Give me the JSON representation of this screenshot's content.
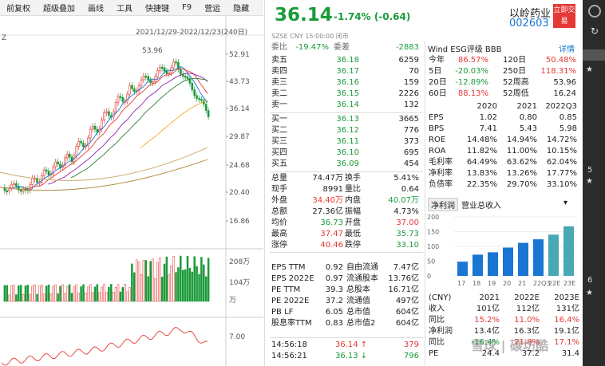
{
  "toolbar": {
    "items": [
      "前复权",
      "超级叠加",
      "画线",
      "工具",
      "快捷键",
      "F9",
      "营运",
      "隐藏"
    ]
  },
  "chart": {
    "range_label": "2021/12/29-2022/12/23(240日)",
    "left_label": "Z",
    "high_label": "53.96",
    "price_ticks": [
      "52.91",
      "43.73",
      "36.14",
      "29.87",
      "24.68",
      "20.40",
      "16.86"
    ],
    "volume_ticks": [
      "208万",
      "104万",
      "万"
    ],
    "indicator_ticks": [
      "7.00"
    ]
  },
  "header": {
    "price": "36.14",
    "change_pct": "-1.74%",
    "change_abs": "(-0.64)",
    "name": "以岭药业",
    "code": "002603",
    "trade_button": "立即交易",
    "market": "SZSE",
    "currency": "CNY",
    "time": "15:00:00",
    "status": "闭市"
  },
  "orderbook": {
    "weibi_label": "委比",
    "weibi_value": "-19.47%",
    "weicha_label": "委差",
    "weicha_value": "-2883",
    "asks": [
      {
        "label": "卖五",
        "price": "36.18",
        "vol": "6259"
      },
      {
        "label": "卖四",
        "price": "36.17",
        "vol": "70"
      },
      {
        "label": "卖三",
        "price": "36.16",
        "vol": "159"
      },
      {
        "label": "卖二",
        "price": "36.15",
        "vol": "2226"
      },
      {
        "label": "卖一",
        "price": "36.14",
        "vol": "132"
      }
    ],
    "bids": [
      {
        "label": "买一",
        "price": "36.13",
        "vol": "3665"
      },
      {
        "label": "买二",
        "price": "36.12",
        "vol": "776"
      },
      {
        "label": "买三",
        "price": "36.11",
        "vol": "373"
      },
      {
        "label": "买四",
        "price": "36.10",
        "vol": "695"
      },
      {
        "label": "买五",
        "price": "36.09",
        "vol": "454"
      }
    ]
  },
  "stats": [
    {
      "l1": "总量",
      "v1": "74.47万",
      "c1": "",
      "l2": "换手",
      "v2": "5.41%",
      "c2": ""
    },
    {
      "l1": "现手",
      "v1": "8991",
      "c1": "",
      "l2": "量比",
      "v2": "0.64",
      "c2": ""
    },
    {
      "l1": "外盘",
      "v1": "34.40万",
      "c1": "red",
      "l2": "内盘",
      "v2": "40.07万",
      "c2": "green"
    },
    {
      "l1": "总额",
      "v1": "27.36亿",
      "c1": "",
      "l2": "振幅",
      "v2": "4.73%",
      "c2": ""
    },
    {
      "l1": "均价",
      "v1": "36.73",
      "c1": "green",
      "l2": "开盘",
      "v2": "37.00",
      "c2": "red"
    },
    {
      "l1": "最高",
      "v1": "37.47",
      "c1": "red",
      "l2": "最低",
      "v2": "35.73",
      "c2": "green"
    },
    {
      "l1": "涨停",
      "v1": "40.46",
      "c1": "red",
      "l2": "跌停",
      "v2": "33.10",
      "c2": "green"
    }
  ],
  "fundamentals": [
    {
      "l1": "EPS TTM",
      "v1": "0.92",
      "l2": "自由流通",
      "v2": "7.47亿"
    },
    {
      "l1": "EPS 2022E",
      "v1": "0.97",
      "l2": "流通股本",
      "v2": "13.76亿"
    },
    {
      "l1": "PE TTM",
      "v1": "39.3",
      "l2": "总股本",
      "v2": "16.71亿"
    },
    {
      "l1": "PE 2022E",
      "v1": "37.2",
      "l2": "流通值",
      "v2": "497亿"
    },
    {
      "l1": "PB LF",
      "v1": "6.05",
      "l2": "总市值",
      "v2": "604亿"
    },
    {
      "l1": "股息率TTM",
      "v1": "0.83",
      "l2": "总市值2",
      "v2": "604亿"
    }
  ],
  "ticks": [
    {
      "time": "14:56:18",
      "price": "36.14",
      "arrow": "↑",
      "vol": "379"
    },
    {
      "time": "14:56:21",
      "price": "36.13",
      "arrow": "↓",
      "vol": "796"
    }
  ],
  "wind": {
    "header": "Wind ESG评级 BBB",
    "detail": "详情",
    "returns": [
      {
        "l1": "今年",
        "v1": "86.57%",
        "c1": "red",
        "l2": "120日",
        "v2": "50.48%",
        "c2": "red"
      },
      {
        "l1": "5日",
        "v1": "-20.03%",
        "c1": "green",
        "l2": "250日",
        "v2": "118.31%",
        "c2": "red"
      },
      {
        "l1": "20日",
        "v1": "-12.89%",
        "c1": "green",
        "l2": "52周高",
        "v2": "53.96",
        "c2": ""
      },
      {
        "l1": "60日",
        "v1": "88.13%",
        "c1": "red",
        "l2": "52周低",
        "v2": "16.24",
        "c2": ""
      }
    ],
    "years": [
      "2020",
      "2021",
      "2022Q3"
    ],
    "metrics": [
      {
        "name": "EPS",
        "vals": [
          "1.02",
          "0.80",
          "0.85"
        ]
      },
      {
        "name": "BPS",
        "vals": [
          "7.41",
          "5.43",
          "5.98"
        ]
      },
      {
        "name": "ROE",
        "vals": [
          "14.48%",
          "14.94%",
          "14.72%"
        ]
      },
      {
        "name": "ROA",
        "vals": [
          "11.82%",
          "11.00%",
          "10.15%"
        ]
      },
      {
        "name": "毛利率",
        "vals": [
          "64.49%",
          "63.62%",
          "62.04%"
        ]
      },
      {
        "name": "净利率",
        "vals": [
          "13.83%",
          "13.26%",
          "17.77%"
        ]
      },
      {
        "name": "负债率",
        "vals": [
          "22.35%",
          "29.70%",
          "33.10%"
        ]
      }
    ],
    "profit_tabs": [
      "净利润",
      "营业总收入"
    ],
    "bar_ticks": [
      "200",
      "150",
      "100",
      "50",
      "0"
    ],
    "bar_xlabels": [
      "17",
      "18",
      "19",
      "20",
      "21",
      "22Q3",
      "22E",
      "23E"
    ],
    "forecast_header": [
      "(CNY)",
      "2021",
      "2022E",
      "2023E"
    ],
    "forecast": [
      {
        "name": "收入",
        "vals": [
          "101亿",
          "112亿",
          "131亿"
        ],
        "cls": [
          "",
          "",
          ""
        ]
      },
      {
        "name": "同比",
        "vals": [
          "15.2%",
          "11.0%",
          "16.4%"
        ],
        "cls": [
          "red",
          "red",
          "red"
        ]
      },
      {
        "name": "净利润",
        "vals": [
          "13.4亿",
          "16.3亿",
          "19.1亿"
        ],
        "cls": [
          "",
          "",
          ""
        ]
      },
      {
        "name": "同比",
        "vals": [
          "-16.4%",
          "21.8%",
          "17.1%"
        ],
        "cls": [
          "green",
          "red",
          "red"
        ]
      },
      {
        "name": "PE",
        "vals": [
          "24.4",
          "37.2",
          "31.4"
        ],
        "cls": [
          "",
          "",
          ""
        ]
      }
    ],
    "watermark": "雪球 | 碳坊酷"
  },
  "strip": {
    "labels": [
      "5",
      "6"
    ]
  }
}
